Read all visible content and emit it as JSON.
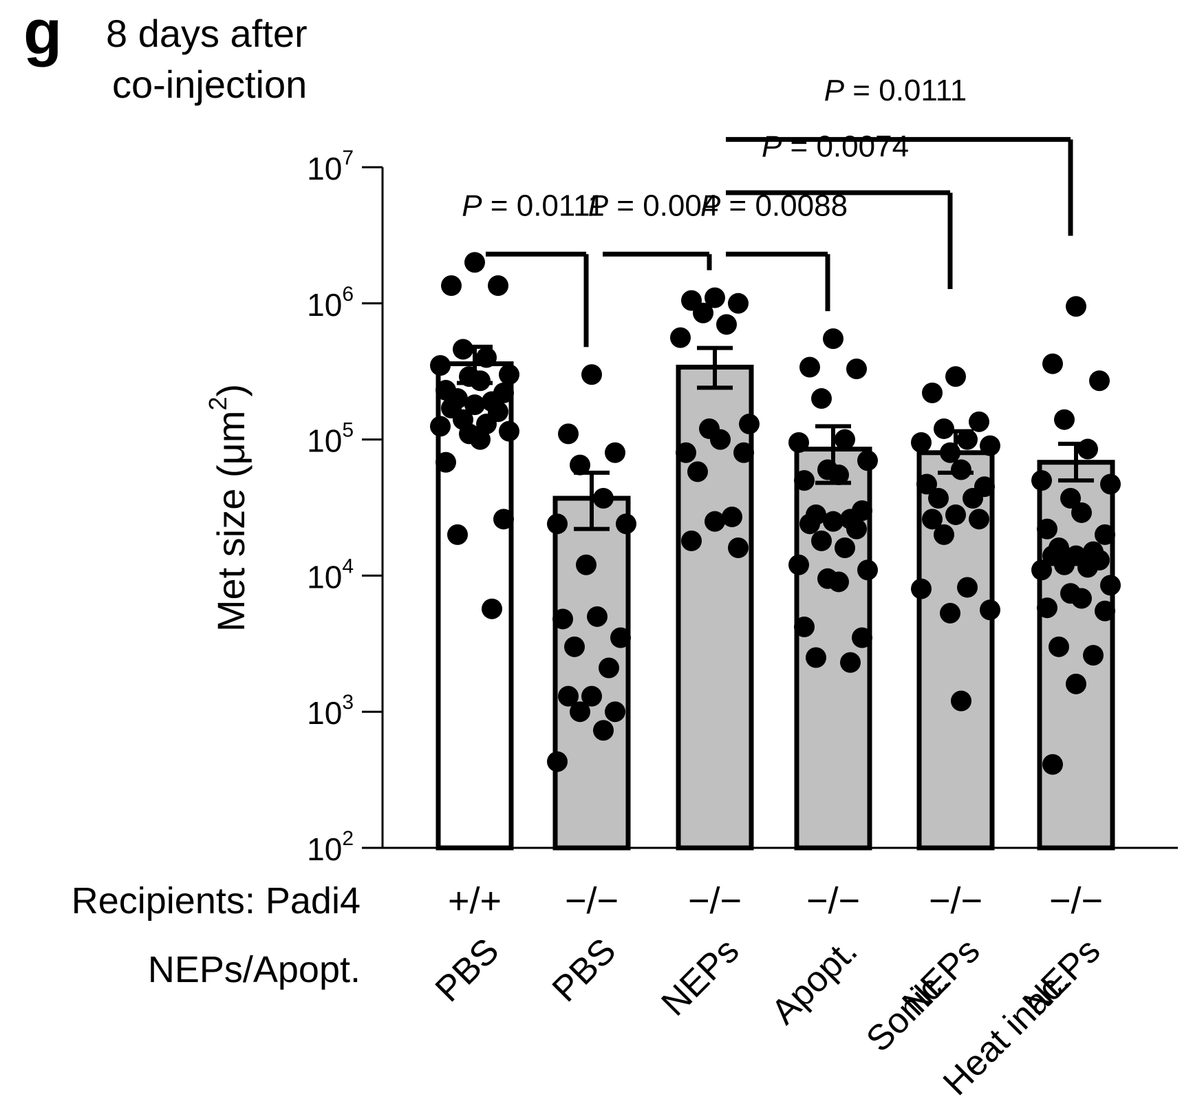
{
  "panel_label": "g",
  "title_lines": [
    "8 days after",
    "co-injection"
  ],
  "colors": {
    "axis": "#000000",
    "dot": "#000000",
    "bar_fill_white": "#ffffff",
    "bar_fill_grey": "#c0c0c0"
  },
  "chart_data": {
    "type": "bar",
    "y_scale": "log10",
    "ylabel": "Met size (μm2)",
    "ylim": [
      100,
      10000000
    ],
    "y_ticks": [
      {
        "value": 100,
        "base": "10",
        "exp": "2"
      },
      {
        "value": 1000,
        "base": "10",
        "exp": "3"
      },
      {
        "value": 10000,
        "base": "10",
        "exp": "4"
      },
      {
        "value": 100000,
        "base": "10",
        "exp": "5"
      },
      {
        "value": 1000000,
        "base": "10",
        "exp": "6"
      },
      {
        "value": 10000000,
        "base": "10",
        "exp": "7"
      }
    ],
    "row_labels": {
      "recipients": "Recipients: Padi4",
      "treatment": "NEPs/Apopt."
    },
    "groups": [
      {
        "recipient": "+/+",
        "treatment_lines": [
          "PBS"
        ],
        "fill": "white",
        "mean": 360000,
        "sem_upper": 480000,
        "sem_lower": 260000,
        "points": [
          2000000,
          1350000,
          1350000,
          460000,
          400000,
          350000,
          300000,
          290000,
          270000,
          230000,
          220000,
          200000,
          190000,
          180000,
          170000,
          160000,
          140000,
          130000,
          125000,
          115000,
          110000,
          100000,
          68000,
          26000,
          20000,
          5700
        ]
      },
      {
        "recipient": "−/−",
        "treatment_lines": [
          "PBS"
        ],
        "fill": "grey",
        "mean": 37000,
        "sem_upper": 57000,
        "sem_lower": 22000,
        "points": [
          300000,
          110000,
          80000,
          65000,
          37000,
          24000,
          24000,
          12000,
          5000,
          4800,
          3500,
          3000,
          2100,
          1300,
          1300,
          1000,
          1000,
          730,
          430
        ]
      },
      {
        "recipient": "−/−",
        "treatment_lines": [
          "NEPs"
        ],
        "fill": "grey",
        "mean": 340000,
        "sem_upper": 470000,
        "sem_lower": 240000,
        "points": [
          1100000,
          1050000,
          1000000,
          850000,
          700000,
          560000,
          130000,
          120000,
          100000,
          80000,
          80000,
          58000,
          27000,
          25000,
          18000,
          16000
        ]
      },
      {
        "recipient": "−/−",
        "treatment_lines": [
          "Apopt."
        ],
        "fill": "grey",
        "mean": 85000,
        "sem_upper": 125000,
        "sem_lower": 48000,
        "points": [
          550000,
          340000,
          330000,
          200000,
          100000,
          95000,
          70000,
          60000,
          55000,
          50000,
          30000,
          28000,
          26000,
          25000,
          24000,
          22000,
          18000,
          16000,
          12000,
          11000,
          9500,
          9000,
          4200,
          3500,
          2500,
          2300
        ]
      },
      {
        "recipient": "−/−",
        "treatment_lines": [
          "NEPs",
          "Sonic."
        ],
        "fill": "grey",
        "mean": 80000,
        "sem_upper": 115000,
        "sem_lower": 57000,
        "points": [
          290000,
          220000,
          135000,
          120000,
          100000,
          95000,
          90000,
          80000,
          60000,
          47000,
          45000,
          37000,
          37000,
          28000,
          26000,
          26000,
          20000,
          8200,
          8000,
          5600,
          5300,
          1200
        ]
      },
      {
        "recipient": "−/−",
        "treatment_lines": [
          "NEPs",
          "Heat inac."
        ],
        "fill": "grey",
        "mean": 68000,
        "sem_upper": 93000,
        "sem_lower": 50000,
        "points": [
          950000,
          360000,
          270000,
          140000,
          85000,
          50000,
          47000,
          37000,
          29000,
          22000,
          20000,
          16000,
          15000,
          14000,
          14000,
          13000,
          12000,
          11500,
          11000,
          8500,
          7400,
          6800,
          5800,
          5500,
          3000,
          2600,
          1600,
          410
        ]
      }
    ],
    "comparisons": [
      {
        "label_italic": "P",
        "label_rest": " = 0.0111",
        "from": 0,
        "to": 1,
        "bracket_y": 2300000,
        "text_y": 4400000
      },
      {
        "label_italic": "P",
        "label_rest": " = 0.004",
        "from": 1,
        "to": 2,
        "bracket_y": 2300000,
        "text_y": 4400000
      },
      {
        "label_italic": "P",
        "label_rest": " = 0.0088",
        "from": 2,
        "to": 3,
        "bracket_y": 2300000,
        "text_y": 4400000
      },
      {
        "label_italic": "P",
        "label_rest": " = 0.0074",
        "from": 2,
        "to": 4,
        "bracket_y": 6500000,
        "text_y": 12000000
      },
      {
        "label_italic": "P",
        "label_rest": " = 0.0111",
        "from": 2,
        "to": 5,
        "bracket_y": 16000000,
        "text_y": 31000000
      }
    ]
  }
}
